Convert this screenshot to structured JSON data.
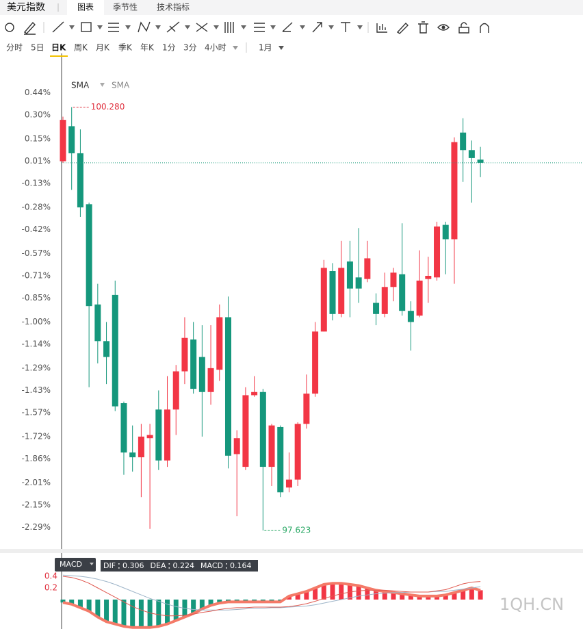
{
  "tabs": {
    "title": "美元指数",
    "items": [
      "图表",
      "季节性",
      "技术指标"
    ],
    "active": 0
  },
  "timeframes": {
    "items": [
      "分时",
      "5日",
      "日K",
      "周K",
      "月K",
      "季K",
      "年K",
      "1分",
      "3分",
      "4小时"
    ],
    "active": 2,
    "range": "1月"
  },
  "indicators": [
    "SMA",
    "SMA"
  ],
  "chart_data": {
    "type": "candlestick",
    "ylim": [
      -2.43,
      0.58
    ],
    "yticks": [
      {
        "value": 0.44,
        "label": "0.44%"
      },
      {
        "value": 0.3,
        "label": "0.30%"
      },
      {
        "value": 0.15,
        "label": "0.15%"
      },
      {
        "value": 0.01,
        "label": "0.01%"
      },
      {
        "value": -0.13,
        "label": "-0.13%"
      },
      {
        "value": -0.28,
        "label": "-0.28%"
      },
      {
        "value": -0.42,
        "label": "-0.42%"
      },
      {
        "value": -0.57,
        "label": "-0.57%"
      },
      {
        "value": -0.71,
        "label": "-0.71%"
      },
      {
        "value": -0.85,
        "label": "-0.85%"
      },
      {
        "value": -1.0,
        "label": "-1.00%"
      },
      {
        "value": -1.14,
        "label": "-1.14%"
      },
      {
        "value": -1.29,
        "label": "-1.29%"
      },
      {
        "value": -1.43,
        "label": "-1.43%"
      },
      {
        "value": -1.57,
        "label": "-1.57%"
      },
      {
        "value": -1.72,
        "label": "-1.72%"
      },
      {
        "value": -1.86,
        "label": "-1.86%"
      },
      {
        "value": -2.01,
        "label": "-2.01%"
      },
      {
        "value": -2.15,
        "label": "-2.15%"
      },
      {
        "value": -2.29,
        "label": "-2.29%"
      }
    ],
    "candles": {
      "open": [
        0.01,
        0.23,
        0.06,
        -0.26,
        -0.89,
        -1.12,
        -0.83,
        -1.51,
        -1.82,
        -1.85,
        -1.73,
        -1.55,
        -1.87,
        -1.55,
        -1.31,
        -1.11,
        -1.22,
        -1.44,
        -1.3,
        -0.97,
        -1.83,
        -1.91,
        -1.46,
        -1.44,
        -1.91,
        -1.66,
        -2.04,
        -1.99,
        -1.64,
        -1.45,
        -1.06,
        -0.68,
        -0.95,
        -0.62,
        -0.72,
        -0.73,
        -0.88,
        -0.95,
        -0.78,
        -0.7,
        -0.93,
        -0.96,
        -0.73,
        -0.72,
        -0.39,
        -0.48,
        0.19,
        0.08,
        0.02
      ],
      "high": [
        0.29,
        0.35,
        0.21,
        -0.25,
        -0.76,
        -1.0,
        -0.74,
        -1.5,
        -1.65,
        -1.64,
        -1.64,
        -1.43,
        -1.34,
        -1.27,
        -0.97,
        -1.0,
        -1.02,
        -1.02,
        -0.89,
        -0.84,
        -1.68,
        -1.41,
        -1.34,
        -1.42,
        -1.64,
        -1.65,
        -1.82,
        -1.63,
        -1.33,
        -1.0,
        -0.61,
        -0.63,
        -0.49,
        -0.49,
        -0.41,
        -0.49,
        -0.82,
        -0.69,
        -0.66,
        -0.38,
        -0.87,
        -0.55,
        -0.59,
        -0.37,
        -0.37,
        0.16,
        0.28,
        0.14,
        0.1
      ],
      "low": [
        0.0,
        -0.17,
        -0.34,
        -1.41,
        -1.26,
        -1.39,
        -1.56,
        -1.96,
        -1.94,
        -2.1,
        -2.3,
        -1.93,
        -1.91,
        -1.71,
        -1.39,
        -1.45,
        -1.72,
        -1.52,
        -1.37,
        -1.92,
        -2.22,
        -1.93,
        -1.47,
        -2.31,
        -2.03,
        -2.1,
        -2.07,
        -2.03,
        -1.67,
        -1.47,
        -1.06,
        -0.99,
        -0.97,
        -0.97,
        -0.88,
        -0.75,
        -1.02,
        -0.97,
        -0.87,
        -0.96,
        -1.18,
        -0.97,
        -0.88,
        -0.74,
        -0.7,
        -0.76,
        -0.12,
        -0.25,
        -0.09
      ],
      "close": [
        0.27,
        0.06,
        -0.28,
        -0.9,
        -1.12,
        -1.22,
        -1.53,
        -1.82,
        -1.85,
        -1.72,
        -1.71,
        -1.87,
        -1.55,
        -1.31,
        -1.1,
        -1.42,
        -1.44,
        -1.29,
        -0.97,
        -1.84,
        -1.73,
        -1.46,
        -1.44,
        -1.91,
        -1.65,
        -2.07,
        -1.99,
        -1.64,
        -1.45,
        -1.06,
        -0.66,
        -0.95,
        -0.66,
        -0.79,
        -0.79,
        -0.6,
        -0.95,
        -0.78,
        -0.69,
        -0.93,
        -1.0,
        -0.74,
        -0.71,
        -0.4,
        -0.48,
        0.13,
        0.08,
        0.03,
        0.0
      ]
    },
    "up_color": "#f23645",
    "down_color": "#15977c",
    "annotations": {
      "high_label": "100.280",
      "low_label": "97.623"
    }
  },
  "macd": {
    "type": "macd",
    "label": "MACD",
    "ylim": [
      -0.5,
      0.48
    ],
    "yticks": [
      0.4,
      0.2
    ],
    "series": [
      {
        "name": "DIF",
        "current": 0.306,
        "color": "#e0584f",
        "values": [
          0.4,
          0.38,
          0.34,
          0.28,
          0.2,
          0.12,
          0.04,
          -0.04,
          -0.12,
          -0.18,
          -0.23,
          -0.26,
          -0.28,
          -0.28,
          -0.27,
          -0.25,
          -0.22,
          -0.2,
          -0.17,
          -0.15,
          -0.14,
          -0.14,
          -0.13,
          -0.13,
          -0.13,
          -0.13,
          -0.12,
          -0.1,
          -0.07,
          -0.03,
          0.02,
          0.06,
          0.1,
          0.13,
          0.15,
          0.16,
          0.16,
          0.16,
          0.15,
          0.14,
          0.13,
          0.13,
          0.13,
          0.15,
          0.17,
          0.22,
          0.27,
          0.3,
          0.31
        ]
      },
      {
        "name": "DEA",
        "current": 0.224,
        "color": "#9db4c8",
        "values": [
          0.42,
          0.41,
          0.4,
          0.38,
          0.35,
          0.31,
          0.26,
          0.2,
          0.14,
          0.08,
          0.02,
          -0.03,
          -0.08,
          -0.12,
          -0.15,
          -0.17,
          -0.18,
          -0.18,
          -0.18,
          -0.18,
          -0.17,
          -0.16,
          -0.15,
          -0.15,
          -0.14,
          -0.14,
          -0.13,
          -0.12,
          -0.11,
          -0.09,
          -0.06,
          -0.03,
          0.0,
          0.03,
          0.06,
          0.08,
          0.1,
          0.11,
          0.12,
          0.12,
          0.13,
          0.13,
          0.13,
          0.14,
          0.14,
          0.16,
          0.18,
          0.2,
          0.22
        ]
      },
      {
        "name": "MACD",
        "current": 0.164,
        "color": "#f47a68",
        "values": [
          -0.05,
          -0.08,
          -0.14,
          -0.2,
          -0.3,
          -0.38,
          -0.42,
          -0.46,
          -0.48,
          -0.48,
          -0.48,
          -0.46,
          -0.42,
          -0.36,
          -0.3,
          -0.24,
          -0.16,
          -0.1,
          -0.06,
          -0.04,
          -0.04,
          -0.04,
          -0.04,
          -0.04,
          -0.04,
          -0.04,
          0.06,
          0.1,
          0.14,
          0.2,
          0.26,
          0.28,
          0.28,
          0.26,
          0.24,
          0.2,
          0.16,
          0.14,
          0.12,
          0.1,
          0.08,
          0.06,
          0.06,
          0.06,
          0.08,
          0.12,
          0.16,
          0.2,
          0.16
        ]
      }
    ]
  },
  "watermark": "1QH.CN"
}
